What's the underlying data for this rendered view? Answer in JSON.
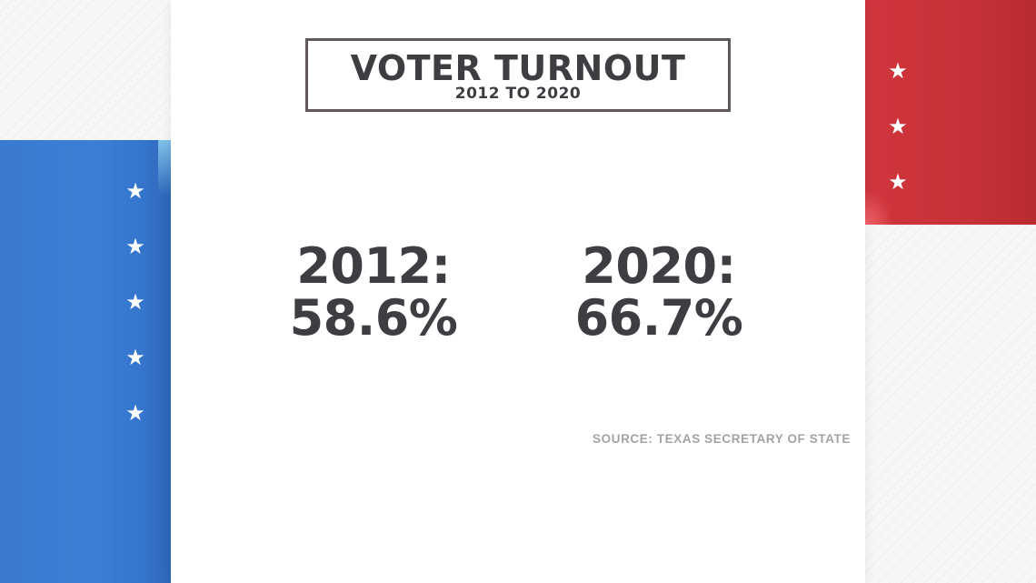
{
  "title": {
    "main": "VOTER TURNOUT",
    "sub": "2012 TO 2020"
  },
  "stats": [
    {
      "year_label": "2012:",
      "value": "58.6%"
    },
    {
      "year_label": "2020:",
      "value": "66.7%"
    }
  ],
  "source": "SOURCE: TEXAS SECRETARY OF STATE",
  "decor": {
    "star_glyph": "★",
    "colors": {
      "blue": "#3b7fd6",
      "red": "#c63237",
      "text": "#3d3d42",
      "border": "#5e5957",
      "source_text": "#a3a3a3"
    }
  }
}
